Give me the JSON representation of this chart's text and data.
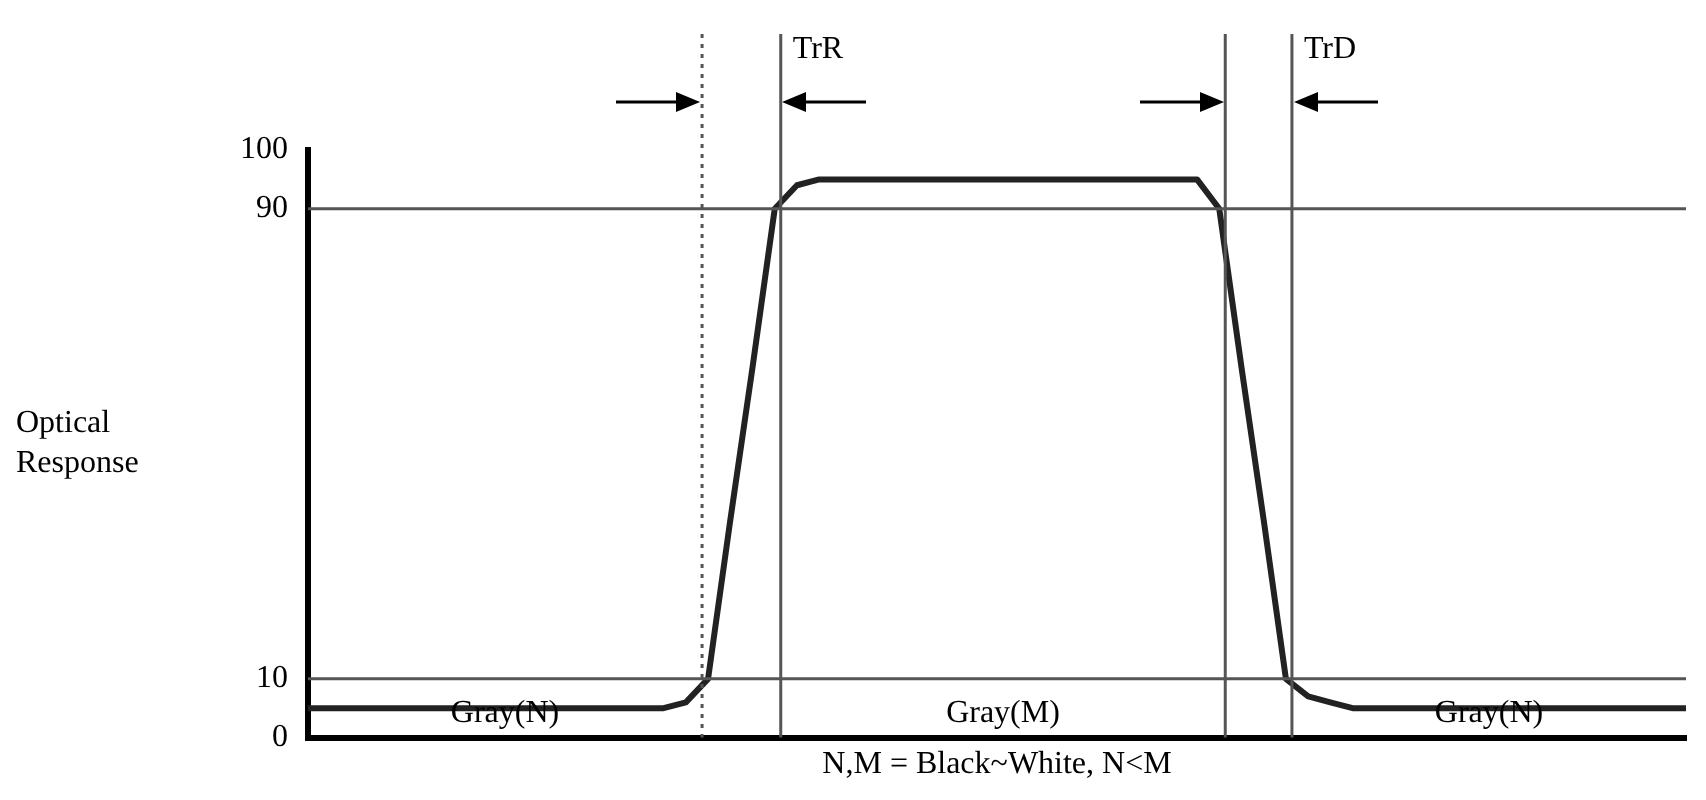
{
  "chart_data": {
    "type": "line",
    "ylabel": "Optical Response",
    "xlabel": "N,M = Black~White, N<M",
    "categories": [
      null,
      null,
      null,
      null,
      null,
      null,
      null,
      null,
      null,
      null,
      null,
      null,
      null,
      null,
      null,
      null,
      null,
      null,
      null,
      null,
      null,
      null,
      null,
      null,
      null,
      null,
      null,
      null,
      null,
      null,
      null,
      null,
      null,
      null,
      null,
      null,
      null,
      null,
      null,
      null,
      null,
      null,
      null,
      null,
      null,
      null,
      null,
      null,
      null,
      null,
      null,
      null,
      null,
      null,
      null,
      null,
      null,
      null,
      null,
      null,
      null,
      null,
      null
    ],
    "series": [
      {
        "color": "#222222",
        "values": [
          5,
          5,
          5,
          5,
          5,
          5,
          5,
          5,
          5,
          5,
          5,
          5,
          5,
          5,
          5,
          5,
          5,
          6,
          10,
          37,
          63,
          90,
          94,
          95,
          95,
          95,
          95,
          95,
          95,
          95,
          95,
          95,
          95,
          95,
          95,
          95,
          95,
          95,
          95,
          95,
          95,
          90,
          63,
          37,
          10,
          7,
          6,
          5,
          5,
          5,
          5,
          5,
          5,
          5,
          5,
          5,
          5,
          5,
          5,
          5,
          5,
          5,
          5
        ]
      }
    ],
    "ylim": [
      0,
      100
    ],
    "yticks": [
      0,
      10,
      90,
      100
    ],
    "ref_lines": [
      {
        "axis": "y",
        "value": 90,
        "label": null,
        "color": "#555555"
      },
      {
        "axis": "y",
        "value": 10,
        "label": null,
        "color": "#555555"
      }
    ],
    "annotations": [
      "TrR",
      "TrD",
      "Gray(N)",
      "Gray(M)",
      "Gray(N)"
    ],
    "grid": false,
    "legend": false,
    "marker": "none",
    "line_style": "solid"
  }
}
